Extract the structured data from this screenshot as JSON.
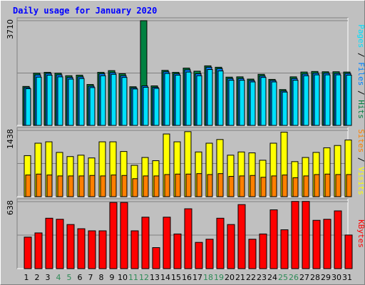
{
  "title": "Daily usage for January 2020",
  "colors": {
    "title": "#0000ff",
    "hits": "#008040",
    "files": "#0080ff",
    "pages": "#00e0ff",
    "visits": "#ffff00",
    "sites": "#ff8000",
    "kbytes": "#ff0000",
    "weekend_day": "#2e8b57",
    "weekday": "#000000",
    "plot_bg": "#c0c0c0",
    "grid": "#808080"
  },
  "chart_data": [
    {
      "type": "bar",
      "panel": "hits-files-pages",
      "scale_max_label": "3710",
      "ymax": 3710,
      "legend": [
        "Hits",
        "Files",
        "Pages"
      ],
      "x": [
        "1",
        "2",
        "3",
        "4",
        "5",
        "6",
        "7",
        "8",
        "9",
        "10",
        "11",
        "12",
        "13",
        "14",
        "15",
        "16",
        "17",
        "18",
        "19",
        "20",
        "21",
        "22",
        "23",
        "24",
        "25",
        "26",
        "27",
        "28",
        "29",
        "30",
        "31"
      ],
      "series": [
        {
          "name": "Hits",
          "color_key": "hits",
          "values": [
            1380,
            1850,
            1880,
            1850,
            1760,
            1780,
            1450,
            1880,
            1940,
            1830,
            1370,
            3710,
            1400,
            1950,
            1880,
            2030,
            1920,
            2110,
            2060,
            1710,
            1720,
            1640,
            1810,
            1630,
            1270,
            1720,
            1890,
            1910,
            1900,
            1900,
            1890
          ]
        },
        {
          "name": "Files",
          "color_key": "files",
          "values": [
            1340,
            1790,
            1840,
            1790,
            1700,
            1720,
            1390,
            1830,
            1870,
            1760,
            1330,
            1400,
            1350,
            1900,
            1830,
            1970,
            1830,
            2060,
            2010,
            1660,
            1660,
            1590,
            1750,
            1590,
            1220,
            1660,
            1820,
            1850,
            1850,
            1840,
            1840
          ]
        },
        {
          "name": "Pages",
          "color_key": "pages",
          "values": [
            1300,
            1710,
            1780,
            1720,
            1640,
            1660,
            1340,
            1760,
            1810,
            1700,
            1290,
            1350,
            1310,
            1840,
            1780,
            1890,
            1760,
            1980,
            1930,
            1600,
            1600,
            1540,
            1700,
            1540,
            1180,
            1600,
            1760,
            1790,
            1790,
            1790,
            1780
          ]
        }
      ]
    },
    {
      "type": "bar",
      "panel": "visits-sites",
      "scale_max_label": "1438",
      "ymax": 1438,
      "legend": [
        "Visits",
        "Sites"
      ],
      "x": [
        "1",
        "2",
        "3",
        "4",
        "5",
        "6",
        "7",
        "8",
        "9",
        "10",
        "11",
        "12",
        "13",
        "14",
        "15",
        "16",
        "17",
        "18",
        "19",
        "20",
        "21",
        "22",
        "23",
        "24",
        "25",
        "26",
        "27",
        "28",
        "29",
        "30",
        "31"
      ],
      "series": [
        {
          "name": "Visits",
          "color_key": "visits",
          "values": [
            890,
            1160,
            1190,
            960,
            870,
            900,
            840,
            1190,
            1190,
            980,
            680,
            850,
            780,
            1360,
            1190,
            1410,
            970,
            1160,
            1240,
            900,
            970,
            950,
            790,
            1160,
            1400,
            760,
            850,
            960,
            1060,
            1110,
            1230
          ]
        },
        {
          "name": "Sites",
          "color_key": "sites",
          "values": [
            470,
            490,
            470,
            450,
            450,
            450,
            460,
            450,
            470,
            460,
            390,
            450,
            450,
            480,
            490,
            490,
            500,
            480,
            500,
            440,
            450,
            460,
            420,
            450,
            470,
            410,
            450,
            480,
            490,
            480,
            480
          ]
        }
      ]
    },
    {
      "type": "bar",
      "panel": "kbytes",
      "scale_max_label": "638",
      "ymax": 638,
      "legend": [
        "KBytes"
      ],
      "x": [
        "1",
        "2",
        "3",
        "4",
        "5",
        "6",
        "7",
        "8",
        "9",
        "10",
        "11",
        "12",
        "13",
        "14",
        "15",
        "16",
        "17",
        "18",
        "19",
        "20",
        "21",
        "22",
        "23",
        "24",
        "25",
        "26",
        "27",
        "28",
        "29",
        "30",
        "31"
      ],
      "series": [
        {
          "name": "KBytes",
          "color_key": "kbytes",
          "values": [
            300,
            340,
            480,
            470,
            420,
            380,
            360,
            360,
            630,
            630,
            360,
            490,
            200,
            490,
            330,
            570,
            250,
            280,
            480,
            420,
            610,
            280,
            330,
            560,
            370,
            640,
            640,
            460,
            470,
            550,
            320
          ]
        }
      ]
    }
  ],
  "x_labels": [
    "1",
    "2",
    "3",
    "4",
    "5",
    "6",
    "7",
    "8",
    "9",
    "10",
    "11",
    "12",
    "13",
    "14",
    "15",
    "16",
    "17",
    "18",
    "19",
    "20",
    "21",
    "22",
    "23",
    "24",
    "25",
    "26",
    "27",
    "28",
    "29",
    "30",
    "31"
  ],
  "weekend_days": [
    4,
    5,
    11,
    12,
    18,
    19,
    25,
    26
  ],
  "right_labels": {
    "top": [
      {
        "text": "Pages",
        "color_key": "pages"
      },
      {
        "text": " / ",
        "color_key": "weekday"
      },
      {
        "text": "Files",
        "color_key": "files"
      },
      {
        "text": " / ",
        "color_key": "weekday"
      },
      {
        "text": "Hits",
        "color_key": "hits"
      }
    ],
    "middle": [
      {
        "text": "Sites",
        "color_key": "sites"
      },
      {
        "text": " / ",
        "color_key": "weekday"
      },
      {
        "text": "Visits",
        "color_key": "visits"
      }
    ],
    "bottom": [
      {
        "text": "KBytes",
        "color_key": "kbytes"
      }
    ]
  }
}
